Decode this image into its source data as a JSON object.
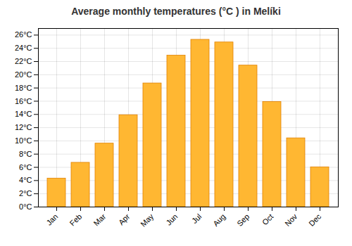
{
  "chart_data": {
    "type": "bar",
    "title": "Average monthly temperatures (°C ) in Melíki",
    "categories": [
      "Jan",
      "Feb",
      "Mar",
      "Apr",
      "May",
      "Jun",
      "Jul",
      "Aug",
      "Sep",
      "Oct",
      "Nov",
      "Dec"
    ],
    "values": [
      4.3,
      6.7,
      9.6,
      13.9,
      18.7,
      22.9,
      25.3,
      24.9,
      21.4,
      15.9,
      10.4,
      6.0
    ],
    "color": "#FFB732",
    "ylim": [
      0,
      27
    ],
    "yticks": [
      {
        "value": 0,
        "label": "0°C"
      },
      {
        "value": 2,
        "label": "2°C"
      },
      {
        "value": 4,
        "label": "4°C"
      },
      {
        "value": 6,
        "label": "6°C"
      },
      {
        "value": 8,
        "label": "8°C"
      },
      {
        "value": 10,
        "label": "10°C"
      },
      {
        "value": 12,
        "label": "12°C"
      },
      {
        "value": 14,
        "label": "14°C"
      },
      {
        "value": 16,
        "label": "16°C"
      },
      {
        "value": 18,
        "label": "18°C"
      },
      {
        "value": 20,
        "label": "20°C"
      },
      {
        "value": 22,
        "label": "22°C"
      },
      {
        "value": 24,
        "label": "24°C"
      },
      {
        "value": 26,
        "label": "26°C"
      }
    ],
    "grid": true
  }
}
